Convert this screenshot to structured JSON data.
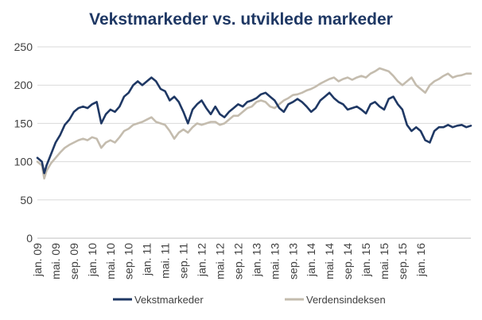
{
  "chart_data": {
    "type": "line",
    "title": "Vekstmarkeder vs. utviklede markeder",
    "xlabel": "",
    "ylabel": "",
    "ylim": [
      0,
      250
    ],
    "yticks": [
      0,
      50,
      100,
      150,
      200,
      250
    ],
    "xlim": [
      0,
      95
    ],
    "xtick_labels": [
      "jan. 09",
      "mai. 09",
      "sep. 09",
      "jan. 10",
      "mai. 10",
      "sep. 10",
      "jan. 11",
      "mai. 11",
      "sep. 11",
      "jan. 12",
      "mai. 12",
      "sep. 12",
      "jan. 13",
      "mai. 13",
      "sep. 13",
      "jan. 14",
      "mai. 14",
      "sep. 14",
      "jan. 15",
      "mai. 15",
      "sep. 15",
      "jan. 16"
    ],
    "xtick_months": [
      0,
      4,
      8,
      12,
      16,
      20,
      24,
      28,
      32,
      36,
      40,
      44,
      48,
      52,
      56,
      60,
      64,
      68,
      72,
      76,
      80,
      84
    ],
    "grid": {
      "horizontal": true,
      "vertical": false
    },
    "legend_position": "bottom",
    "series": [
      {
        "name": "Vekstmarkeder",
        "color": "#1f3864",
        "x": [
          0,
          1,
          1.5,
          2,
          3,
          4,
          5,
          6,
          7,
          8,
          9,
          10,
          11,
          12,
          13,
          14,
          15,
          16,
          17,
          18,
          19,
          20,
          21,
          22,
          23,
          24,
          25,
          26,
          27,
          28,
          29,
          30,
          31,
          32,
          33,
          34,
          35,
          36,
          37,
          38,
          39,
          40,
          41,
          42,
          43,
          44,
          45,
          46,
          47,
          48,
          49,
          50,
          51,
          52,
          53,
          54,
          55,
          56,
          57,
          58,
          59,
          60,
          61,
          62,
          63,
          64,
          65,
          66,
          67,
          68,
          69,
          70,
          71,
          72,
          73,
          74,
          75,
          76,
          77,
          78,
          79,
          80,
          81,
          82,
          83,
          84,
          85,
          86,
          87,
          88,
          89,
          90,
          91,
          92,
          93,
          94,
          95
        ],
        "values": [
          105,
          100,
          85,
          95,
          110,
          125,
          135,
          148,
          155,
          165,
          170,
          172,
          170,
          175,
          178,
          150,
          162,
          168,
          165,
          172,
          185,
          190,
          200,
          205,
          200,
          205,
          210,
          205,
          195,
          192,
          180,
          185,
          178,
          165,
          150,
          168,
          175,
          180,
          170,
          162,
          172,
          162,
          158,
          165,
          170,
          175,
          172,
          178,
          180,
          183,
          188,
          190,
          185,
          180,
          170,
          165,
          175,
          178,
          182,
          178,
          172,
          165,
          170,
          180,
          185,
          190,
          183,
          178,
          175,
          168,
          170,
          172,
          168,
          163,
          175,
          178,
          172,
          168,
          182,
          185,
          175,
          168,
          148,
          140,
          145,
          140,
          128,
          125,
          140,
          145,
          145,
          148,
          145,
          147,
          148,
          145,
          147
        ]
      },
      {
        "name": "Verdensindeksen",
        "color": "#c4bcae",
        "x": [
          0,
          1,
          1.5,
          2,
          3,
          4,
          5,
          6,
          7,
          8,
          9,
          10,
          11,
          12,
          13,
          14,
          15,
          16,
          17,
          18,
          19,
          20,
          21,
          22,
          23,
          24,
          25,
          26,
          27,
          28,
          29,
          30,
          31,
          32,
          33,
          34,
          35,
          36,
          37,
          38,
          39,
          40,
          41,
          42,
          43,
          44,
          45,
          46,
          47,
          48,
          49,
          50,
          51,
          52,
          53,
          54,
          55,
          56,
          57,
          58,
          59,
          60,
          61,
          62,
          63,
          64,
          65,
          66,
          67,
          68,
          69,
          70,
          71,
          72,
          73,
          74,
          75,
          76,
          77,
          78,
          79,
          80,
          81,
          82,
          83,
          84,
          85,
          86,
          87,
          88,
          89,
          90,
          91,
          92,
          93,
          94,
          95
        ],
        "values": [
          100,
          95,
          78,
          88,
          98,
          105,
          112,
          118,
          122,
          125,
          128,
          130,
          128,
          132,
          130,
          118,
          125,
          128,
          125,
          132,
          140,
          143,
          148,
          150,
          152,
          155,
          158,
          152,
          150,
          148,
          140,
          130,
          138,
          142,
          138,
          145,
          150,
          148,
          150,
          152,
          152,
          148,
          150,
          155,
          160,
          160,
          165,
          170,
          172,
          178,
          180,
          178,
          172,
          170,
          175,
          180,
          183,
          187,
          188,
          190,
          193,
          195,
          198,
          202,
          205,
          208,
          210,
          205,
          208,
          210,
          207,
          210,
          212,
          210,
          215,
          218,
          222,
          220,
          218,
          212,
          205,
          200,
          205,
          210,
          200,
          195,
          190,
          200,
          205,
          208,
          212,
          215,
          210,
          212,
          213,
          215,
          215
        ]
      }
    ]
  }
}
